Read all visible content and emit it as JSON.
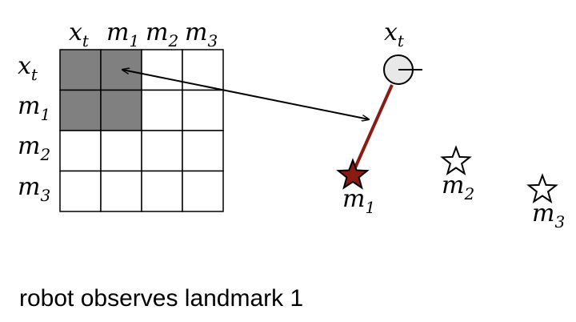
{
  "matrix": {
    "row_labels": [
      {
        "base": "x",
        "sub": "t"
      },
      {
        "base": "m",
        "sub": "1"
      },
      {
        "base": "m",
        "sub": "2"
      },
      {
        "base": "m",
        "sub": "3"
      }
    ],
    "col_labels": [
      {
        "base": "x",
        "sub": "t"
      },
      {
        "base": "m",
        "sub": "1"
      },
      {
        "base": "m",
        "sub": "2"
      },
      {
        "base": "m",
        "sub": "3"
      }
    ],
    "filled": [
      [
        1,
        1,
        0,
        0
      ],
      [
        1,
        1,
        0,
        0
      ],
      [
        0,
        0,
        0,
        0
      ],
      [
        0,
        0,
        0,
        0
      ]
    ],
    "fill_color": "#808080",
    "empty_color": "#ffffff"
  },
  "scene": {
    "robot_label": {
      "base": "x",
      "sub": "t"
    },
    "landmarks": [
      {
        "base": "m",
        "sub": "1",
        "observed": true
      },
      {
        "base": "m",
        "sub": "2",
        "observed": false
      },
      {
        "base": "m",
        "sub": "3",
        "observed": false
      }
    ],
    "observed_color": "#8b1a12",
    "robot_color": "#e8e8e8"
  },
  "caption": "robot observes landmark 1"
}
